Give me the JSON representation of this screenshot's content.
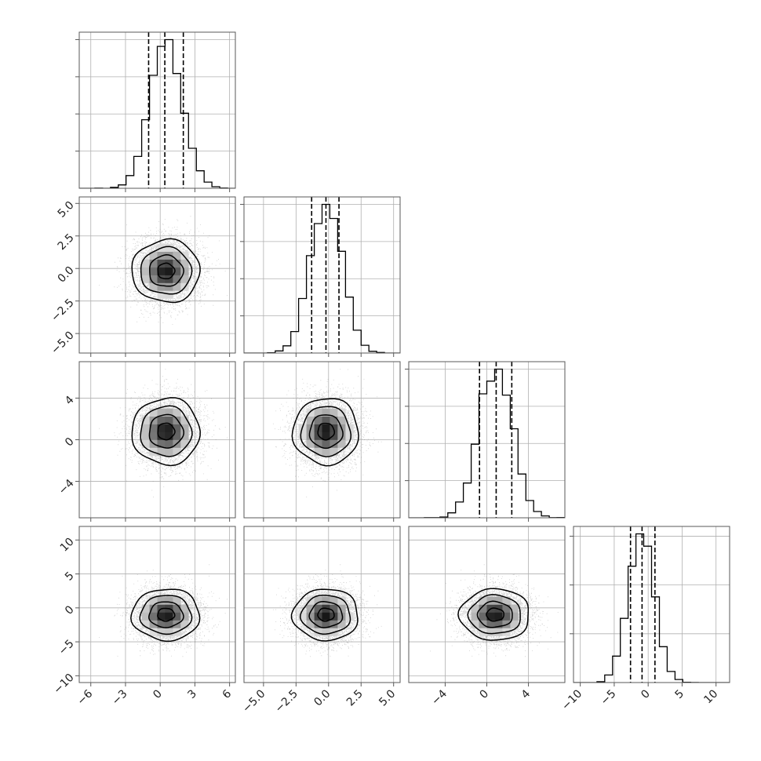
{
  "chart_data": {
    "type": "corner",
    "grid": true,
    "colors": {
      "frame": "#5a5a5a",
      "grid": "#b0b0b0",
      "hist_line": "#000000",
      "contour": "#000000",
      "scatter": "#7a7a7a",
      "density_dark": "#000000"
    },
    "params": [
      {
        "range": [
          -7,
          6.5
        ],
        "ticks": [
          -6,
          -3,
          0,
          3,
          6
        ],
        "tick_labels": [
          "−6",
          "−3",
          "0",
          "3",
          "6"
        ],
        "hist_ticks": 4,
        "mean": 0.5,
        "sigma": 1.4,
        "quantiles": [
          -1.0,
          0.4,
          2.0
        ]
      },
      {
        "range": [
          -6.5,
          5.5
        ],
        "ticks": [
          -5.0,
          -2.5,
          0.0,
          2.5,
          5.0
        ],
        "tick_labels": [
          "−5.0",
          "−2.5",
          "0.0",
          "2.5",
          "5.0"
        ],
        "hist_ticks": 4,
        "mean": -0.2,
        "sigma": 1.2,
        "quantiles": [
          -1.3,
          -0.2,
          0.8
        ]
      },
      {
        "range": [
          -7.5,
          7.5
        ],
        "ticks": [
          -4,
          0,
          4
        ],
        "tick_labels": [
          "−4",
          "0",
          "4"
        ],
        "hist_ticks": 4,
        "mean": 0.8,
        "sigma": 1.6,
        "quantiles": [
          -0.7,
          0.9,
          2.4
        ]
      },
      {
        "range": [
          -11,
          12
        ],
        "ticks": [
          -10,
          -5,
          0,
          5,
          10
        ],
        "tick_labels": [
          "−10",
          "−5",
          "0",
          "5",
          "10"
        ],
        "hist_ticks": 3,
        "mean": -1.0,
        "sigma": 1.9,
        "quantiles": [
          -2.6,
          -0.9,
          1.0
        ]
      }
    ],
    "contour_levels_sigma": [
      0.5,
      1.0,
      1.5,
      2.0
    ],
    "n_samples": 6000
  }
}
